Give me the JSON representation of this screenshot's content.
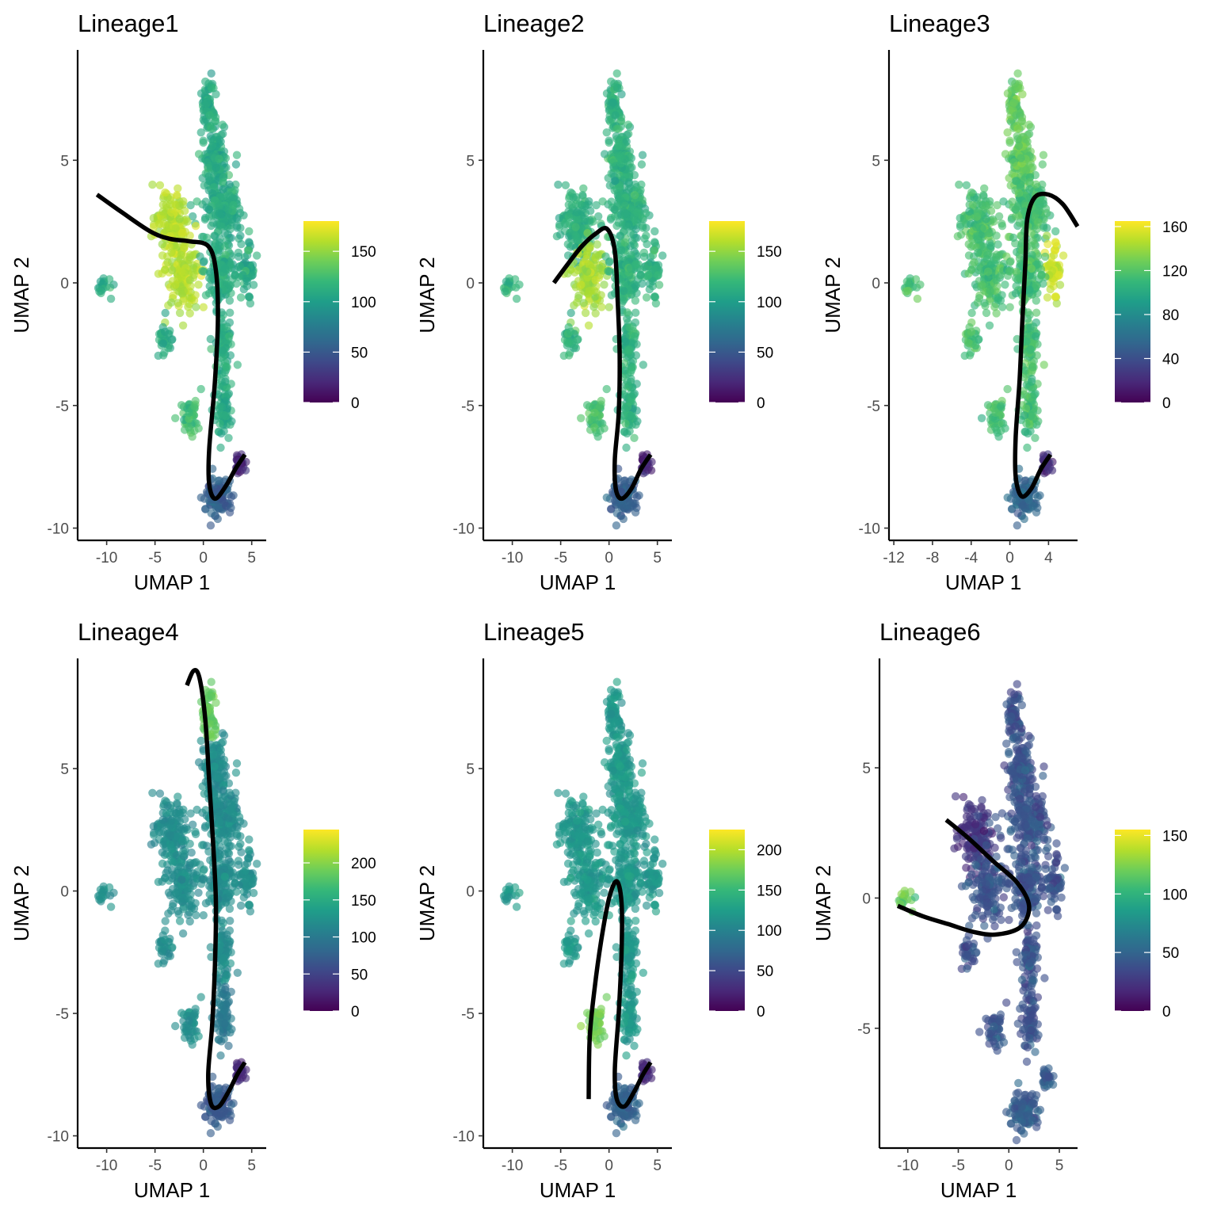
{
  "colors": {
    "viridis": [
      "#440154",
      "#482878",
      "#3e4989",
      "#31688e",
      "#26828e",
      "#1f9e89",
      "#35b779",
      "#6ece58",
      "#b5de2b",
      "#fde725"
    ],
    "trajectory": "#000000",
    "axis": "#000000",
    "tick_label": "#4d4d4d"
  },
  "chart_data": [
    {
      "type": "scatter",
      "title": "Lineage1",
      "xlabel": "UMAP 1",
      "ylabel": "UMAP 2",
      "xlim": [
        -13,
        6.5
      ],
      "ylim": [
        -10.5,
        9.5
      ],
      "xticks": [
        -10,
        -5,
        0,
        5
      ],
      "yticks": [
        -10,
        -5,
        0,
        5
      ],
      "xtick_labels": [
        "-10",
        "-5",
        "0",
        "5"
      ],
      "ytick_labels": [
        "-10",
        "-5",
        "0",
        "5"
      ],
      "colorbar": {
        "min": 0,
        "max": 180,
        "ticks": [
          0,
          50,
          100,
          150
        ],
        "tick_labels": [
          "0",
          "50",
          "100",
          "150"
        ]
      },
      "points_color_regions": {
        "default": 110,
        "high_region_value": 160,
        "low_region_value": 45
      },
      "curve": [
        [
          -11.0,
          3.6
        ],
        [
          -8.5,
          2.9
        ],
        [
          -5.5,
          2.1
        ],
        [
          -3.5,
          1.8
        ],
        [
          -1.5,
          1.7
        ],
        [
          0.5,
          1.5
        ],
        [
          1.3,
          0.5
        ],
        [
          1.5,
          -1.5
        ],
        [
          1.2,
          -4.0
        ],
        [
          0.6,
          -6.8
        ],
        [
          0.6,
          -8.2
        ],
        [
          1.2,
          -8.8
        ],
        [
          2.3,
          -8.3
        ],
        [
          3.3,
          -7.6
        ],
        [
          4.3,
          -7.0
        ]
      ]
    },
    {
      "type": "scatter",
      "title": "Lineage2",
      "xlabel": "UMAP 1",
      "ylabel": "UMAP 2",
      "xlim": [
        -13,
        6.5
      ],
      "ylim": [
        -10.5,
        9.5
      ],
      "xticks": [
        -10,
        -5,
        0,
        5
      ],
      "yticks": [
        -10,
        -5,
        0,
        5
      ],
      "xtick_labels": [
        "-10",
        "-5",
        "0",
        "5"
      ],
      "ytick_labels": [
        "-10",
        "-5",
        "0",
        "5"
      ],
      "colorbar": {
        "min": 0,
        "max": 180,
        "ticks": [
          0,
          50,
          100,
          150
        ],
        "tick_labels": [
          "0",
          "50",
          "100",
          "150"
        ]
      },
      "points_color_regions": {
        "default": 115,
        "high_region_value": 160,
        "low_region_value": 45
      },
      "curve": [
        [
          -5.7,
          0.0
        ],
        [
          -4.2,
          0.8
        ],
        [
          -2.8,
          1.5
        ],
        [
          -1.4,
          2.0
        ],
        [
          -0.2,
          2.2
        ],
        [
          0.6,
          1.3
        ],
        [
          0.9,
          -0.8
        ],
        [
          1.1,
          -3.0
        ],
        [
          1.0,
          -5.3
        ],
        [
          0.6,
          -7.2
        ],
        [
          0.7,
          -8.4
        ],
        [
          1.3,
          -8.8
        ],
        [
          2.3,
          -8.4
        ],
        [
          3.3,
          -7.6
        ],
        [
          4.3,
          -7.0
        ]
      ]
    },
    {
      "type": "scatter",
      "title": "Lineage3",
      "xlabel": "UMAP 1",
      "ylabel": "UMAP 2",
      "xlim": [
        -12.5,
        7.0
      ],
      "ylim": [
        -10.5,
        9.5
      ],
      "xticks": [
        -12,
        -8,
        -4,
        0,
        4
      ],
      "yticks": [
        -10,
        -5,
        0,
        5
      ],
      "xtick_labels": [
        "-12",
        "-8",
        "-4",
        "0",
        "4"
      ],
      "ytick_labels": [
        "-10",
        "-5",
        "0",
        "5"
      ],
      "colorbar": {
        "min": 0,
        "max": 165,
        "ticks": [
          0,
          40,
          80,
          120,
          160
        ],
        "tick_labels": [
          "0",
          "40",
          "80",
          "120",
          "160"
        ]
      },
      "points_color_regions": {
        "default": 115,
        "high_region_value": 150,
        "low_region_value": 45
      },
      "curve": [
        [
          7.0,
          2.3
        ],
        [
          5.5,
          3.2
        ],
        [
          4.0,
          3.6
        ],
        [
          2.6,
          3.5
        ],
        [
          1.8,
          2.6
        ],
        [
          1.6,
          0.8
        ],
        [
          1.3,
          -1.5
        ],
        [
          1.0,
          -4.0
        ],
        [
          0.6,
          -6.3
        ],
        [
          0.6,
          -7.9
        ],
        [
          1.2,
          -8.7
        ],
        [
          2.2,
          -8.4
        ],
        [
          3.2,
          -7.6
        ],
        [
          4.2,
          -7.0
        ]
      ]
    },
    {
      "type": "scatter",
      "title": "Lineage4",
      "xlabel": "UMAP 1",
      "ylabel": "UMAP 2",
      "xlim": [
        -13,
        6.5
      ],
      "ylim": [
        -10.5,
        9.5
      ],
      "xticks": [
        -10,
        -5,
        0,
        5
      ],
      "yticks": [
        -10,
        -5,
        0,
        5
      ],
      "xtick_labels": [
        "-10",
        "-5",
        "0",
        "5"
      ],
      "ytick_labels": [
        "-10",
        "-5",
        "0",
        "5"
      ],
      "colorbar": {
        "min": 0,
        "max": 245,
        "ticks": [
          0,
          50,
          100,
          150,
          200
        ],
        "tick_labels": [
          "0",
          "50",
          "100",
          "150",
          "200"
        ]
      },
      "points_color_regions": {
        "default": 120,
        "high_region_value": 185,
        "low_region_value": 55
      },
      "curve": [
        [
          -1.7,
          8.4
        ],
        [
          -1.0,
          9.0
        ],
        [
          -0.4,
          8.7
        ],
        [
          0.2,
          7.0
        ],
        [
          0.6,
          4.5
        ],
        [
          1.0,
          2.0
        ],
        [
          1.3,
          -0.5
        ],
        [
          1.2,
          -3.0
        ],
        [
          0.9,
          -5.5
        ],
        [
          0.5,
          -7.5
        ],
        [
          0.8,
          -8.7
        ],
        [
          1.6,
          -8.8
        ],
        [
          2.6,
          -8.2
        ],
        [
          3.5,
          -7.5
        ],
        [
          4.3,
          -7.0
        ]
      ]
    },
    {
      "type": "scatter",
      "title": "Lineage5",
      "xlabel": "UMAP 1",
      "ylabel": "UMAP 2",
      "xlim": [
        -13,
        6.5
      ],
      "ylim": [
        -10.5,
        9.5
      ],
      "xticks": [
        -10,
        -5,
        0,
        5
      ],
      "yticks": [
        -10,
        -5,
        0,
        5
      ],
      "xtick_labels": [
        "-10",
        "-5",
        "0",
        "5"
      ],
      "ytick_labels": [
        "-10",
        "-5",
        "0",
        "5"
      ],
      "colorbar": {
        "min": 0,
        "max": 225,
        "ticks": [
          0,
          50,
          100,
          150,
          200
        ],
        "tick_labels": [
          "0",
          "50",
          "100",
          "150",
          "200"
        ]
      },
      "points_color_regions": {
        "default": 120,
        "high_region_value": 175,
        "low_region_value": 55
      },
      "curve": [
        [
          -2.1,
          -8.5
        ],
        [
          -2.0,
          -6.0
        ],
        [
          -1.5,
          -4.0
        ],
        [
          -0.8,
          -2.0
        ],
        [
          0.0,
          -0.3
        ],
        [
          0.8,
          0.4
        ],
        [
          1.3,
          -0.5
        ],
        [
          1.3,
          -2.5
        ],
        [
          1.0,
          -5.0
        ],
        [
          0.6,
          -7.3
        ],
        [
          0.8,
          -8.5
        ],
        [
          1.6,
          -8.8
        ],
        [
          2.6,
          -8.2
        ],
        [
          3.5,
          -7.5
        ],
        [
          4.3,
          -7.0
        ]
      ]
    },
    {
      "type": "scatter",
      "title": "Lineage6",
      "xlabel": "UMAP 1",
      "ylabel": "UMAP 2",
      "xlim": [
        -12.8,
        6.8
      ],
      "ylim": [
        -9.6,
        9.2
      ],
      "xticks": [
        -10,
        -5,
        0,
        5
      ],
      "yticks": [
        -5,
        0,
        5
      ],
      "xtick_labels": [
        "-10",
        "-5",
        "0",
        "5"
      ],
      "ytick_labels": [
        "-5",
        "0",
        "5"
      ],
      "colorbar": {
        "min": 0,
        "max": 155,
        "ticks": [
          0,
          50,
          100,
          150
        ],
        "tick_labels": [
          "0",
          "50",
          "100",
          "150"
        ]
      },
      "points_color_regions": {
        "default": 40,
        "high_region_value": 120,
        "low_region_value": 25
      },
      "curve": [
        [
          -6.2,
          3.0
        ],
        [
          -4.0,
          2.3
        ],
        [
          -1.5,
          1.4
        ],
        [
          0.8,
          0.6
        ],
        [
          2.0,
          -0.3
        ],
        [
          1.2,
          -1.1
        ],
        [
          -1.2,
          -1.4
        ],
        [
          -3.5,
          -1.3
        ],
        [
          -6.0,
          -1.0
        ],
        [
          -8.5,
          -0.7
        ],
        [
          -11.0,
          -0.3
        ]
      ]
    }
  ]
}
